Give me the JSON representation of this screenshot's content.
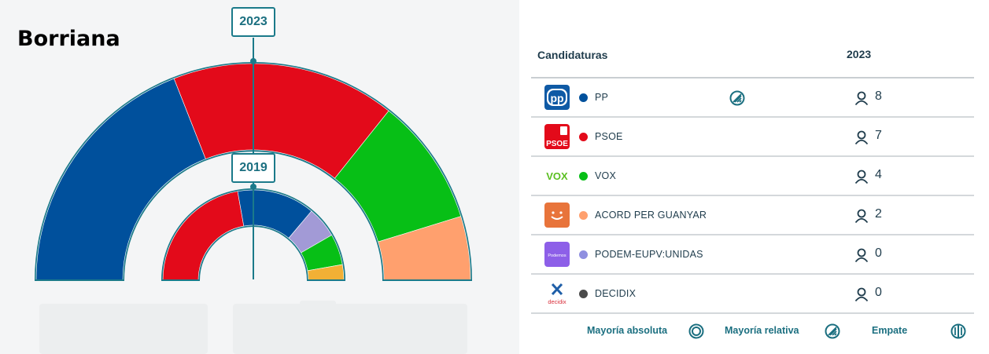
{
  "title": "Borriana",
  "badges": {
    "outer": "2023",
    "inner": "2019"
  },
  "table": {
    "col_candidaturas": "Candidaturas",
    "col_year": "2023",
    "rows": [
      {
        "name": "PP",
        "color": "#00509c",
        "seats": "8",
        "logo_icon": "pp-logo-icon",
        "logo_text": "pp",
        "majority_mark": "relative"
      },
      {
        "name": "PSOE",
        "color": "#e30a1a",
        "seats": "7",
        "logo_icon": "psoe-logo-icon",
        "logo_text": "PSOE"
      },
      {
        "name": "VOX",
        "color": "#07bf16",
        "seats": "4",
        "logo_icon": "vox-logo-icon",
        "logo_text": "VOX"
      },
      {
        "name": "ACORD PER GUANYAR",
        "color": "#ffa06e",
        "seats": "2",
        "logo_icon": "acord-logo-icon",
        "logo_text": ""
      },
      {
        "name": "PODEM-EUPV:UNIDAS",
        "color": "#8f8fe0",
        "seats": "0",
        "logo_icon": "podemos-logo-icon",
        "logo_text": "Podemos"
      },
      {
        "name": "DECIDIX",
        "color": "#4a4a4a",
        "seats": "0",
        "logo_icon": "decidix-logo-icon",
        "logo_text": "decidix"
      }
    ]
  },
  "legend": {
    "absoluta": "Mayoría absoluta",
    "relativa": "Mayoría relativa",
    "empate": "Empate"
  },
  "chart_data": [
    {
      "type": "pie",
      "label": "2023",
      "categories": [
        "PP",
        "PSOE",
        "VOX",
        "ACORD PER GUANYAR"
      ],
      "values": [
        8,
        7,
        4,
        2
      ],
      "colors": [
        "#00509c",
        "#e30a1a",
        "#07bf16",
        "#ffa06e"
      ]
    },
    {
      "type": "pie",
      "label": "2019",
      "categories": [
        "PSOE",
        "PP",
        "PODEM-EUPV:UNIDAS",
        "VOX",
        "other"
      ],
      "values": [
        8,
        5,
        2,
        2,
        1
      ],
      "colors": [
        "#e30a1a",
        "#00509c",
        "#a29ad6",
        "#07bf16",
        "#f2b035"
      ]
    }
  ]
}
